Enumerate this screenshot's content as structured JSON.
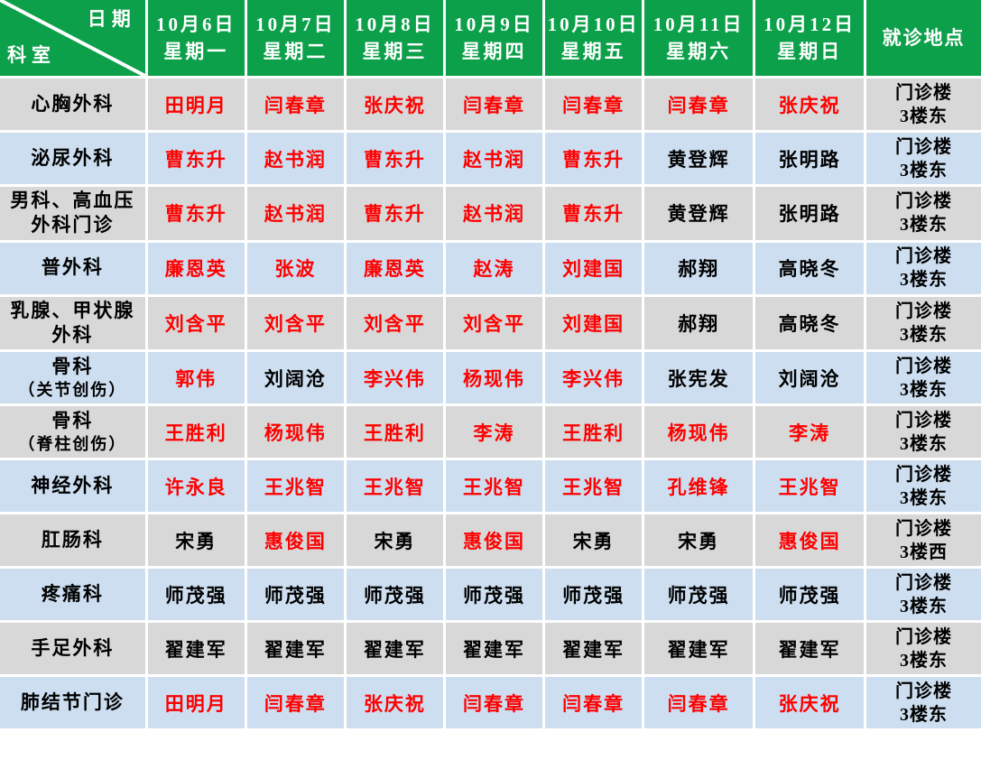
{
  "table": {
    "corner": {
      "top_label": "日期",
      "bottom_label": "科室"
    },
    "location_header": "就诊地点",
    "date_columns": [
      {
        "date": "10月6日",
        "weekday": "星期一"
      },
      {
        "date": "10月7日",
        "weekday": "星期二"
      },
      {
        "date": "10月8日",
        "weekday": "星期三"
      },
      {
        "date": "10月9日",
        "weekday": "星期四"
      },
      {
        "date": "10月10日",
        "weekday": "星期五"
      },
      {
        "date": "10月11日",
        "weekday": "星期六"
      },
      {
        "date": "10月12日",
        "weekday": "星期日"
      }
    ],
    "rows": [
      {
        "department": [
          "心胸外科"
        ],
        "doctors": [
          {
            "name": "田明月",
            "red": true
          },
          {
            "name": "闫春章",
            "red": true
          },
          {
            "name": "张庆祝",
            "red": true
          },
          {
            "name": "闫春章",
            "red": true
          },
          {
            "name": "闫春章",
            "red": true
          },
          {
            "name": "闫春章",
            "red": true
          },
          {
            "name": "张庆祝",
            "red": true
          }
        ],
        "location": [
          "门诊楼",
          "3楼东"
        ]
      },
      {
        "department": [
          "泌尿外科"
        ],
        "doctors": [
          {
            "name": "曹东升",
            "red": true
          },
          {
            "name": "赵书润",
            "red": true
          },
          {
            "name": "曹东升",
            "red": true
          },
          {
            "name": "赵书润",
            "red": true
          },
          {
            "name": "曹东升",
            "red": true
          },
          {
            "name": "黄登辉",
            "red": false
          },
          {
            "name": "张明路",
            "red": false
          }
        ],
        "location": [
          "门诊楼",
          "3楼东"
        ]
      },
      {
        "department": [
          "男科、高血压",
          "外科门诊"
        ],
        "doctors": [
          {
            "name": "曹东升",
            "red": true
          },
          {
            "name": "赵书润",
            "red": true
          },
          {
            "name": "曹东升",
            "red": true
          },
          {
            "name": "赵书润",
            "red": true
          },
          {
            "name": "曹东升",
            "red": true
          },
          {
            "name": "黄登辉",
            "red": false
          },
          {
            "name": "张明路",
            "red": false
          }
        ],
        "location": [
          "门诊楼",
          "3楼东"
        ]
      },
      {
        "department": [
          "普外科"
        ],
        "doctors": [
          {
            "name": "廉恩英",
            "red": true
          },
          {
            "name": "张波",
            "red": true
          },
          {
            "name": "廉恩英",
            "red": true
          },
          {
            "name": "赵涛",
            "red": true
          },
          {
            "name": "刘建国",
            "red": true
          },
          {
            "name": "郝翔",
            "red": false
          },
          {
            "name": "高晓冬",
            "red": false
          }
        ],
        "location": [
          "门诊楼",
          "3楼东"
        ]
      },
      {
        "department": [
          "乳腺、甲状腺",
          "外科"
        ],
        "doctors": [
          {
            "name": "刘含平",
            "red": true
          },
          {
            "name": "刘含平",
            "red": true
          },
          {
            "name": "刘含平",
            "red": true
          },
          {
            "name": "刘含平",
            "red": true
          },
          {
            "name": "刘建国",
            "red": true
          },
          {
            "name": "郝翔",
            "red": false
          },
          {
            "name": "高晓冬",
            "red": false
          }
        ],
        "location": [
          "门诊楼",
          "3楼东"
        ]
      },
      {
        "department": [
          "骨科",
          "（关节创伤）"
        ],
        "doctors": [
          {
            "name": "郭伟",
            "red": true
          },
          {
            "name": "刘阔沧",
            "red": false
          },
          {
            "name": "李兴伟",
            "red": true
          },
          {
            "name": "杨现伟",
            "red": true
          },
          {
            "name": "李兴伟",
            "red": true
          },
          {
            "name": "张宪发",
            "red": false
          },
          {
            "name": "刘阔沧",
            "red": false
          }
        ],
        "location": [
          "门诊楼",
          "3楼东"
        ]
      },
      {
        "department": [
          "骨科",
          "（脊柱创伤）"
        ],
        "doctors": [
          {
            "name": "王胜利",
            "red": true
          },
          {
            "name": "杨现伟",
            "red": true
          },
          {
            "name": "王胜利",
            "red": true
          },
          {
            "name": "李涛",
            "red": true
          },
          {
            "name": "王胜利",
            "red": true
          },
          {
            "name": "杨现伟",
            "red": true
          },
          {
            "name": "李涛",
            "red": true
          }
        ],
        "location": [
          "门诊楼",
          "3楼东"
        ]
      },
      {
        "department": [
          "神经外科"
        ],
        "doctors": [
          {
            "name": "许永良",
            "red": true
          },
          {
            "name": "王兆智",
            "red": true
          },
          {
            "name": "王兆智",
            "red": true
          },
          {
            "name": "王兆智",
            "red": true
          },
          {
            "name": "王兆智",
            "red": true
          },
          {
            "name": "孔维锋",
            "red": true
          },
          {
            "name": "王兆智",
            "red": true
          }
        ],
        "location": [
          "门诊楼",
          "3楼东"
        ]
      },
      {
        "department": [
          "肛肠科"
        ],
        "doctors": [
          {
            "name": "宋勇",
            "red": false
          },
          {
            "name": "惠俊国",
            "red": true
          },
          {
            "name": "宋勇",
            "red": false
          },
          {
            "name": "惠俊国",
            "red": true
          },
          {
            "name": "宋勇",
            "red": false
          },
          {
            "name": "宋勇",
            "red": false
          },
          {
            "name": "惠俊国",
            "red": true
          }
        ],
        "location": [
          "门诊楼",
          "3楼西"
        ]
      },
      {
        "department": [
          "疼痛科"
        ],
        "doctors": [
          {
            "name": "师茂强",
            "red": false
          },
          {
            "name": "师茂强",
            "red": false
          },
          {
            "name": "师茂强",
            "red": false
          },
          {
            "name": "师茂强",
            "red": false
          },
          {
            "name": "师茂强",
            "red": false
          },
          {
            "name": "师茂强",
            "red": false
          },
          {
            "name": "师茂强",
            "red": false
          }
        ],
        "location": [
          "门诊楼",
          "3楼东"
        ]
      },
      {
        "department": [
          "手足外科"
        ],
        "doctors": [
          {
            "name": "翟建军",
            "red": false
          },
          {
            "name": "翟建军",
            "red": false
          },
          {
            "name": "翟建军",
            "red": false
          },
          {
            "name": "翟建军",
            "red": false
          },
          {
            "name": "翟建军",
            "red": false
          },
          {
            "name": "翟建军",
            "red": false
          },
          {
            "name": "翟建军",
            "red": false
          }
        ],
        "location": [
          "门诊楼",
          "3楼东"
        ]
      },
      {
        "department": [
          "肺结节门诊"
        ],
        "doctors": [
          {
            "name": "田明月",
            "red": true
          },
          {
            "name": "闫春章",
            "red": true
          },
          {
            "name": "张庆祝",
            "red": true
          },
          {
            "name": "闫春章",
            "red": true
          },
          {
            "name": "闫春章",
            "red": true
          },
          {
            "name": "闫春章",
            "red": true
          },
          {
            "name": "张庆祝",
            "red": true
          }
        ],
        "location": [
          "门诊楼",
          "3楼东"
        ]
      }
    ],
    "colors": {
      "header_green": "#0da04b",
      "row_gray": "#d8d8d8",
      "row_blue": "#cddef0",
      "highlight_red": "#fe0000",
      "text_black": "#000000",
      "grid_white": "#ffffff"
    }
  }
}
